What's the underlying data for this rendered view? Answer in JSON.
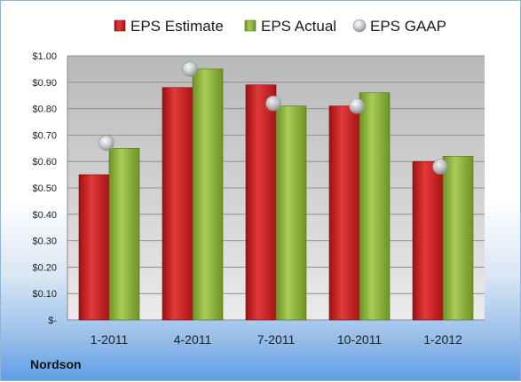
{
  "company": "Nordson",
  "chart_data": {
    "type": "bar",
    "categories": [
      "1-2011",
      "4-2011",
      "7-2011",
      "10-2011",
      "1-2012"
    ],
    "series": [
      {
        "name": "EPS Estimate",
        "kind": "bar",
        "color": "#cc1f1f",
        "values": [
          0.55,
          0.88,
          0.89,
          0.81,
          0.6
        ]
      },
      {
        "name": "EPS Actual",
        "kind": "bar",
        "color": "#8cb43a",
        "values": [
          0.65,
          0.95,
          0.81,
          0.86,
          0.62
        ]
      },
      {
        "name": "EPS GAAP",
        "kind": "marker",
        "color": "#b8bec6",
        "values": [
          0.67,
          0.95,
          0.82,
          0.81,
          0.58
        ]
      }
    ],
    "yticks": [
      "$-",
      "$0.10",
      "$0.20",
      "$0.30",
      "$0.40",
      "$0.50",
      "$0.60",
      "$0.70",
      "$0.80",
      "$0.90",
      "$1.00"
    ],
    "ylim": [
      0,
      1.0
    ],
    "grid": true,
    "legend_position": "top"
  }
}
